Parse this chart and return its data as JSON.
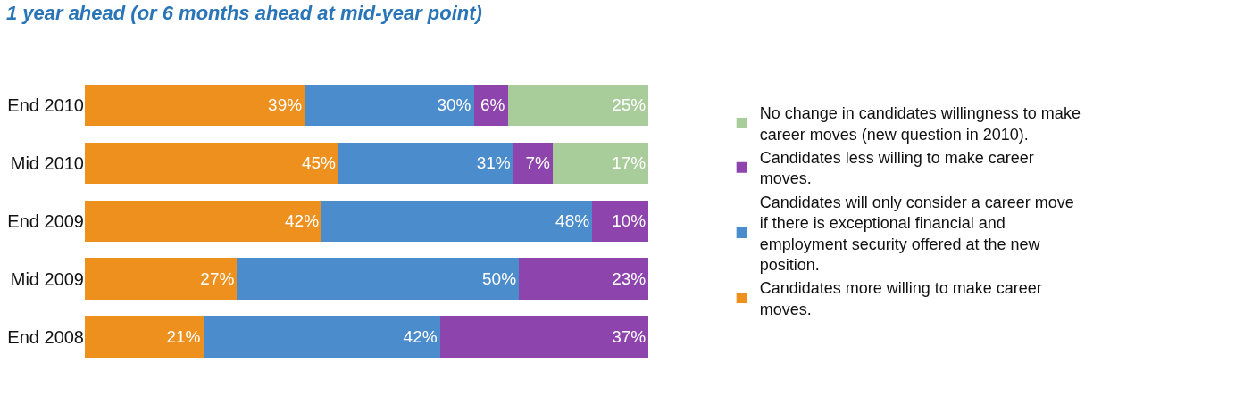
{
  "chart_data": {
    "type": "bar",
    "orientation": "horizontal",
    "stacked": true,
    "title": "1 year ahead (or 6 months ahead at mid-year point)",
    "categories": [
      "End 2010",
      "Mid 2010",
      "End 2009",
      "Mid 2009",
      "End 2008"
    ],
    "series": [
      {
        "name": "Candidates more willing to make career moves.",
        "color": "#ee901e",
        "values": [
          39,
          45,
          42,
          27,
          21
        ],
        "value_labels": [
          "39%",
          "45%",
          "42%",
          "27%",
          "21%"
        ]
      },
      {
        "name": "Candidates will only consider a career move if there is exceptional financial and employment security offered at the new position.",
        "color": "#4a8ccc",
        "values": [
          30,
          31,
          48,
          50,
          42
        ],
        "value_labels": [
          "30%",
          "31%",
          "48%",
          "50%",
          "42%"
        ]
      },
      {
        "name": "Candidates less willing to make career moves.",
        "color": "#8e44ad",
        "values": [
          6,
          7,
          10,
          23,
          37
        ],
        "value_labels": [
          "6%",
          "7%",
          "10%",
          "23%",
          "37%"
        ]
      },
      {
        "name": "No change in candidates willingness to make career moves (new question in 2010).",
        "color": "#a9cc9b",
        "values": [
          25,
          17,
          null,
          null,
          null
        ],
        "value_labels": [
          "25%",
          "17%",
          null,
          null,
          null
        ]
      }
    ],
    "tick_labels": "y",
    "legend": "right"
  }
}
